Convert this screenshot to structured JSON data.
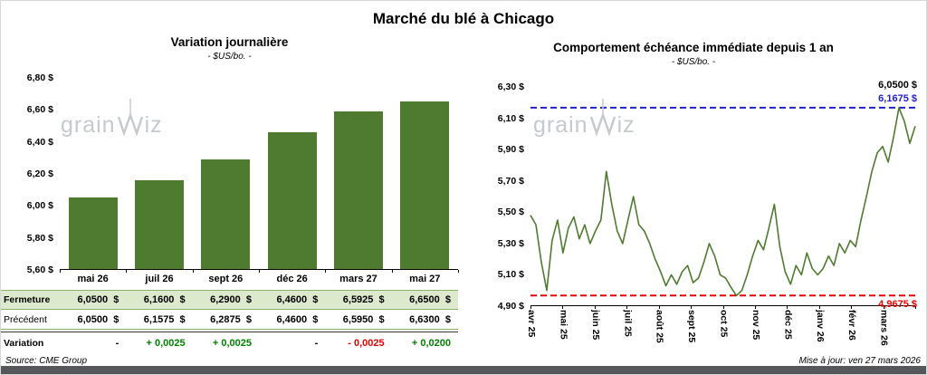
{
  "page": {
    "title": "Marché du blé à Chicago",
    "source": "Source: CME Group",
    "updated": "Mise à jour: ven 27 mars 2026"
  },
  "watermark": {
    "part1": "grain",
    "part2": "iz"
  },
  "colors": {
    "green": "#4e7b2f",
    "blue": "#2020cc",
    "red": "#ee0000",
    "positive": "#008000",
    "negative": "#e00000"
  },
  "table": {
    "rows": [
      {
        "key": "fermeture",
        "label": "Fermeture",
        "bold": true,
        "highlight": true,
        "cells": [
          {
            "text": "6,0500  $"
          },
          {
            "text": "6,1600  $"
          },
          {
            "text": "6,2900  $"
          },
          {
            "text": "6,4600  $"
          },
          {
            "text": "6,5925  $"
          },
          {
            "text": "6,6500  $"
          }
        ]
      },
      {
        "key": "precedent",
        "label": "Précédent",
        "bold": false,
        "highlight": false,
        "cells": [
          {
            "text": "6,0500  $"
          },
          {
            "text": "6,1575  $"
          },
          {
            "text": "6,2875  $"
          },
          {
            "text": "6,4600  $"
          },
          {
            "text": "6,5950  $"
          },
          {
            "text": "6,6300  $"
          }
        ]
      },
      {
        "key": "variation",
        "label": "Variation",
        "bold": true,
        "variation": true,
        "cells": [
          {
            "text": "-",
            "trend": "zero"
          },
          {
            "text": "+ 0,0025",
            "trend": "pos"
          },
          {
            "text": "+ 0,0025",
            "trend": "pos"
          },
          {
            "text": "-",
            "trend": "zero"
          },
          {
            "text": "- 0,0025",
            "trend": "neg"
          },
          {
            "text": "+ 0,0200",
            "trend": "pos"
          }
        ]
      }
    ]
  },
  "chart_data": [
    {
      "type": "bar",
      "title": "Variation  journalière",
      "subtitle": "- $US/bo. -",
      "categories": [
        "mai 26",
        "juil 26",
        "sept 26",
        "déc 26",
        "mars 27",
        "mai 27"
      ],
      "values": [
        6.05,
        6.16,
        6.29,
        6.46,
        6.5925,
        6.65
      ],
      "ylim": [
        5.6,
        6.8
      ],
      "yticks": [
        "6,80 $",
        "6,60 $",
        "6,40 $",
        "6,20 $",
        "6,00 $",
        "5,80 $",
        "5,60 $"
      ],
      "ylabel": "$US/bo.",
      "grid": false,
      "bar_color": "#4e7b2f"
    },
    {
      "type": "line",
      "title": "Comportement échéance immédiate depuis 1 an",
      "subtitle": "- $US/bo. -",
      "categories": [
        "avr 25",
        "mai 25",
        "juin 25",
        "juil 25",
        "août 25",
        "sept 25",
        "oct 25",
        "nov 25",
        "déc 25",
        "janv 26",
        "févr 26",
        "mars 26"
      ],
      "ylim": [
        4.9,
        6.3
      ],
      "yticks": [
        "6,30 $",
        "6,10 $",
        "5,90 $",
        "5,70 $",
        "5,50 $",
        "5,30 $",
        "5,10 $",
        "4,90 $"
      ],
      "ylabel": "$US/bo.",
      "grid": false,
      "series": [
        {
          "name": "échéance immédiate",
          "values": [
            5.48,
            5.42,
            5.18,
            5.0,
            5.32,
            5.45,
            5.24,
            5.4,
            5.47,
            5.33,
            5.42,
            5.3,
            5.38,
            5.45,
            5.76,
            5.55,
            5.38,
            5.3,
            5.45,
            5.6,
            5.42,
            5.38,
            5.3,
            5.2,
            5.12,
            5.03,
            5.1,
            5.04,
            5.12,
            5.16,
            5.05,
            5.08,
            5.18,
            5.3,
            5.22,
            5.1,
            5.08,
            5.02,
            4.9675,
            5.0,
            5.1,
            5.22,
            5.32,
            5.26,
            5.4,
            5.55,
            5.28,
            5.12,
            5.04,
            5.16,
            5.1,
            5.24,
            5.14,
            5.1,
            5.14,
            5.22,
            5.16,
            5.3,
            5.24,
            5.32,
            5.28,
            5.45,
            5.6,
            5.76,
            5.88,
            5.92,
            5.82,
            5.98,
            6.1675,
            6.08,
            5.94,
            6.05
          ]
        }
      ],
      "annotations": {
        "last": {
          "value": 6.05,
          "label": "6,0500 $",
          "color": "#000000"
        },
        "high": {
          "value": 6.1675,
          "label": "6,1675 $",
          "color": "#2020cc"
        },
        "low": {
          "value": 4.9675,
          "label": "4,9675 $",
          "color": "#ee0000"
        }
      }
    }
  ]
}
